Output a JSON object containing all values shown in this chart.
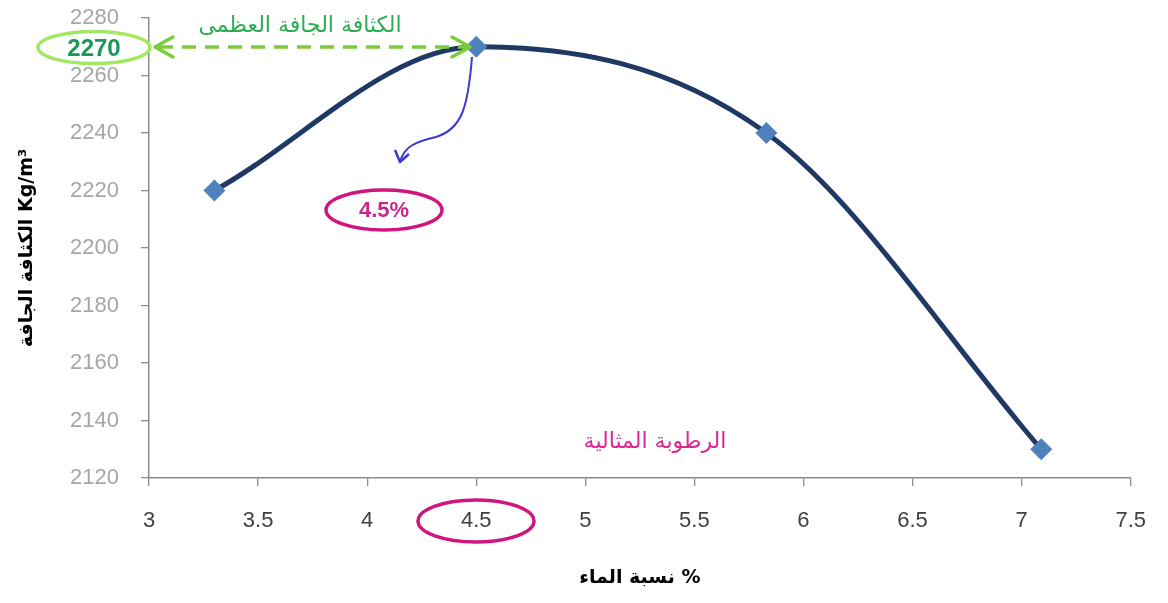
{
  "chart_data": {
    "type": "line",
    "xlabel": "نسبة الماء %",
    "ylabel": "الكثافة الجافة Kg/m³",
    "x": [
      3.3,
      4.5,
      5.83,
      7.09
    ],
    "values": [
      2220,
      2270,
      2240,
      2130
    ],
    "color": "#1f3864",
    "colors": [
      "#4f81bd",
      "#4f81bd",
      "#4f81bd",
      "#4f81bd"
    ],
    "marker": "diamond",
    "line_style": "solid",
    "xlim": [
      3,
      7.5
    ],
    "xticks": [
      3,
      3.5,
      4,
      4.5,
      5,
      5.5,
      6,
      6.5,
      7,
      7.5
    ],
    "ylim": [
      2120,
      2280
    ],
    "yticks": [
      2120,
      2140,
      2160,
      2180,
      2200,
      2220,
      2240,
      2260,
      2280
    ],
    "grid": false,
    "legend": false,
    "annotations": [
      "الكثافة الجافة العظمى",
      "2270",
      "4.5%",
      "الرطوبة المثالية"
    ]
  }
}
